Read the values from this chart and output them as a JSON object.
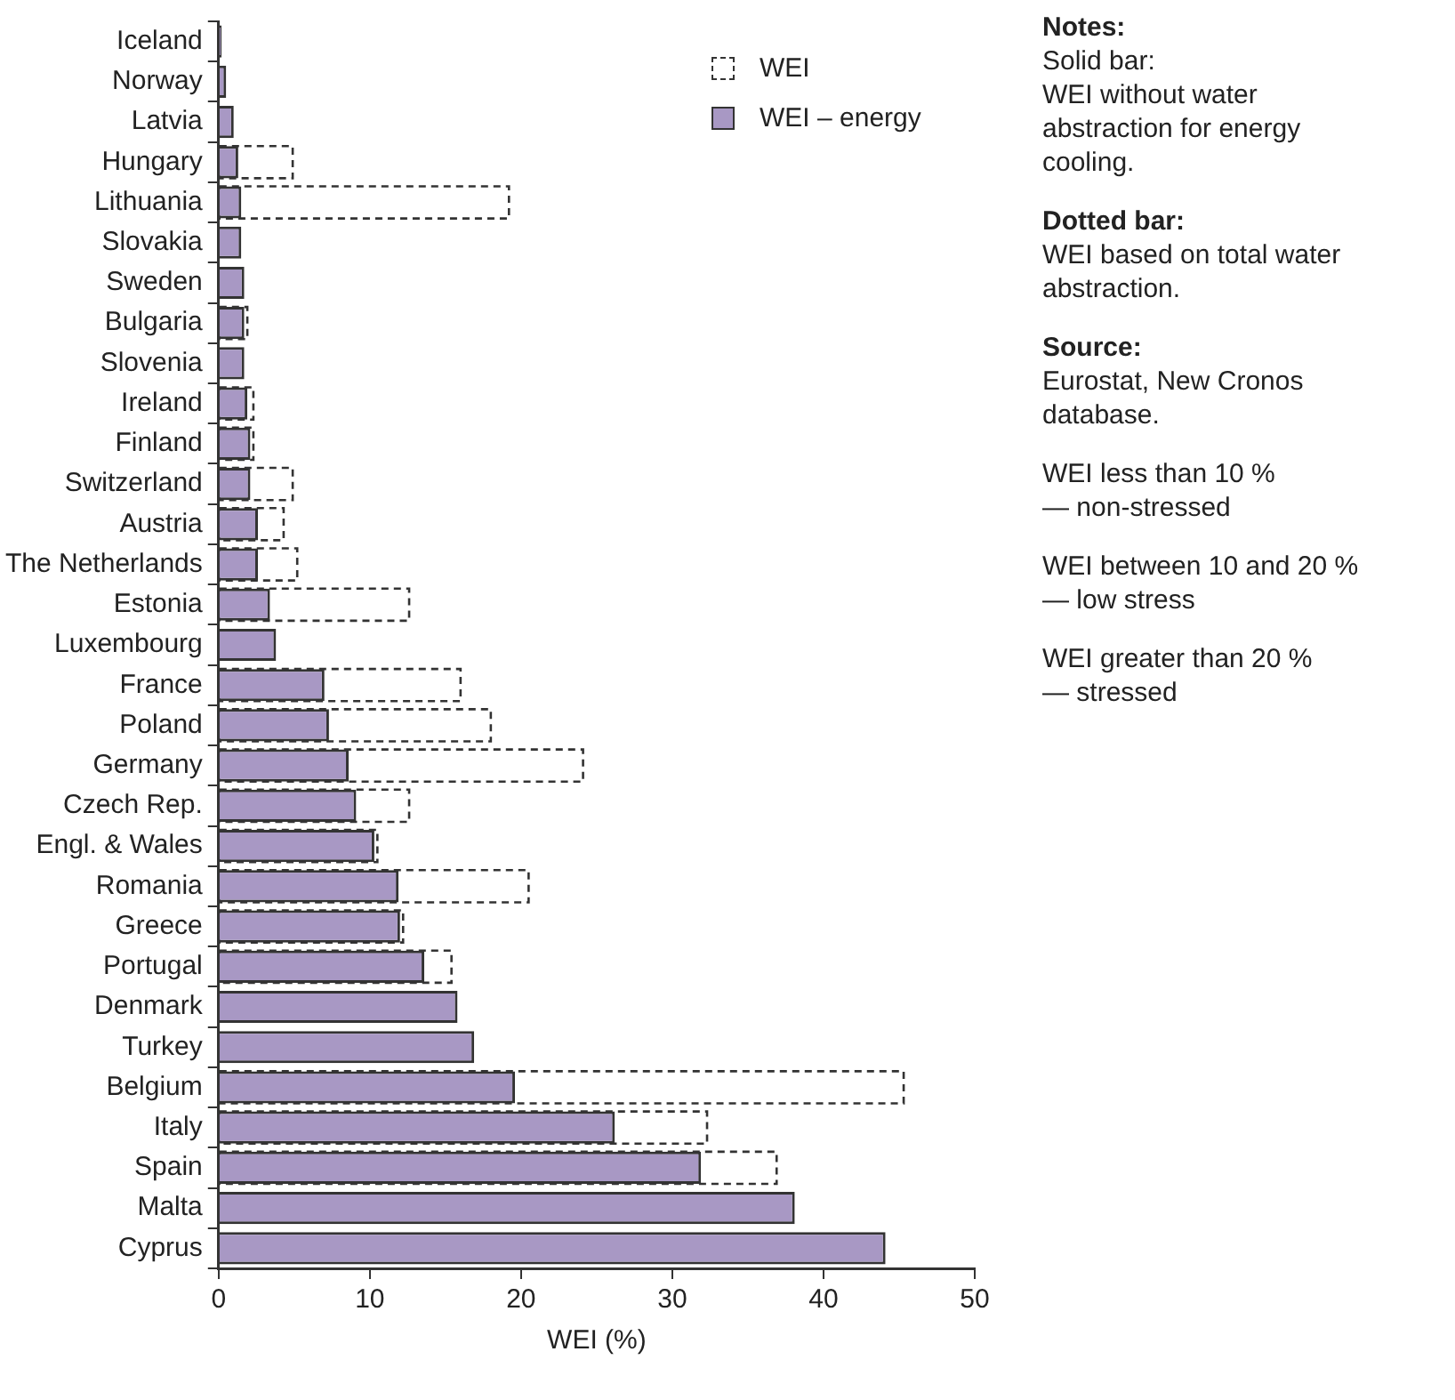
{
  "chart_data": {
    "type": "bar",
    "orientation": "horizontal",
    "xlabel": "WEI (%)",
    "categories": [
      "Iceland",
      "Norway",
      "Latvia",
      "Hungary",
      "Lithuania",
      "Slovakia",
      "Sweden",
      "Bulgaria",
      "Slovenia",
      "Ireland",
      "Finland",
      "Switzerland",
      "Austria",
      "The Netherlands",
      "Estonia",
      "Luxembourg",
      "France",
      "Poland",
      "Germany",
      "Czech Rep.",
      "Engl. & Wales",
      "Romania",
      "Greece",
      "Portugal",
      "Denmark",
      "Turkey",
      "Belgium",
      "Italy",
      "Spain",
      "Malta",
      "Cyprus"
    ],
    "series": [
      {
        "name": "WEI",
        "color": "#333333",
        "line_style": "dashed",
        "values": [
          null,
          null,
          null,
          4.9,
          19.2,
          null,
          null,
          1.9,
          null,
          2.3,
          2.3,
          4.9,
          4.3,
          5.2,
          12.6,
          null,
          16.0,
          18.0,
          24.1,
          12.6,
          10.5,
          20.5,
          12.2,
          15.4,
          null,
          null,
          45.3,
          32.3,
          36.9,
          null,
          null
        ]
      },
      {
        "name": "WEI – energy",
        "color": "#a898c4",
        "values": [
          0.2,
          0.5,
          1.0,
          1.3,
          1.5,
          1.5,
          1.7,
          1.7,
          1.7,
          1.9,
          2.1,
          2.1,
          2.6,
          2.6,
          3.4,
          3.8,
          7.0,
          7.3,
          8.6,
          9.1,
          10.3,
          11.9,
          12.0,
          13.6,
          15.8,
          16.9,
          19.6,
          26.2,
          31.9,
          38.1,
          44.1
        ]
      }
    ],
    "xlim": [
      0,
      50
    ],
    "xticks": [
      0,
      10,
      20,
      30,
      40,
      50
    ],
    "grid": false,
    "legend": "top right",
    "annotations": [
      "Notes:",
      "Solid bar:\nWEI without water\nabstraction for energy\ncooling.",
      "Dotted bar:",
      "WEI based on total water\nabstraction.",
      "Source:",
      "Eurostat, New Cronos\ndatabase.",
      "WEI less than 10 %\n— non-stressed",
      "WEI between 10 and 20 %\n— low stress",
      "WEI greater than 20 %\n— stressed"
    ]
  }
}
